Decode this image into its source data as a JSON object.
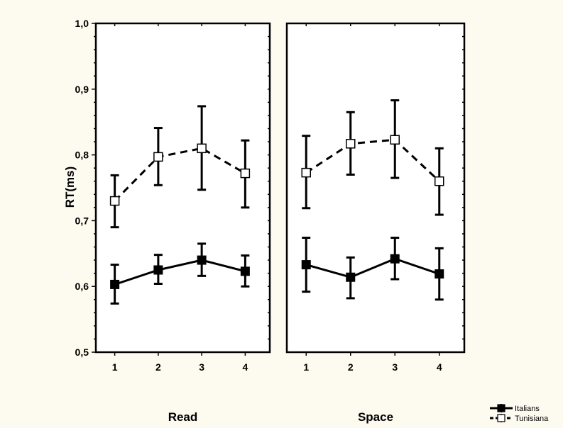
{
  "colors": {
    "background": "#fdfaf0",
    "panel": "#ffffff",
    "ink": "#000000"
  },
  "chart_data": {
    "type": "line",
    "ylabel": "RT(ms)",
    "ylim": [
      0.5,
      1.0
    ],
    "yticks": [
      "0,5",
      "0,6",
      "0,7",
      "0,8",
      "0,9",
      "1,0"
    ],
    "x": [
      "1",
      "2",
      "3",
      "4"
    ],
    "grid": false,
    "legend_position": "bottom-right",
    "panels": [
      {
        "title": "Read",
        "series": [
          {
            "name": "Italians",
            "marker": "filled-square",
            "line": "solid",
            "values": [
              0.603,
              0.625,
              0.64,
              0.623
            ],
            "lower": [
              0.574,
              0.604,
              0.616,
              0.6
            ],
            "upper": [
              0.633,
              0.648,
              0.665,
              0.647
            ]
          },
          {
            "name": "Tunisiana",
            "marker": "open-square",
            "line": "dashed",
            "values": [
              0.73,
              0.797,
              0.81,
              0.772
            ],
            "lower": [
              0.69,
              0.754,
              0.747,
              0.72
            ],
            "upper": [
              0.769,
              0.841,
              0.874,
              0.822
            ]
          }
        ]
      },
      {
        "title": "Space",
        "series": [
          {
            "name": "Italians",
            "marker": "filled-square",
            "line": "solid",
            "values": [
              0.633,
              0.614,
              0.642,
              0.619
            ],
            "lower": [
              0.592,
              0.582,
              0.611,
              0.58
            ],
            "upper": [
              0.674,
              0.644,
              0.674,
              0.658
            ]
          },
          {
            "name": "Tunisiana",
            "marker": "open-square",
            "line": "dashed",
            "values": [
              0.773,
              0.817,
              0.823,
              0.76
            ],
            "lower": [
              0.719,
              0.77,
              0.765,
              0.709
            ],
            "upper": [
              0.829,
              0.865,
              0.883,
              0.81
            ]
          }
        ]
      }
    ],
    "legend": [
      "Italians",
      "Tunisiana"
    ]
  }
}
